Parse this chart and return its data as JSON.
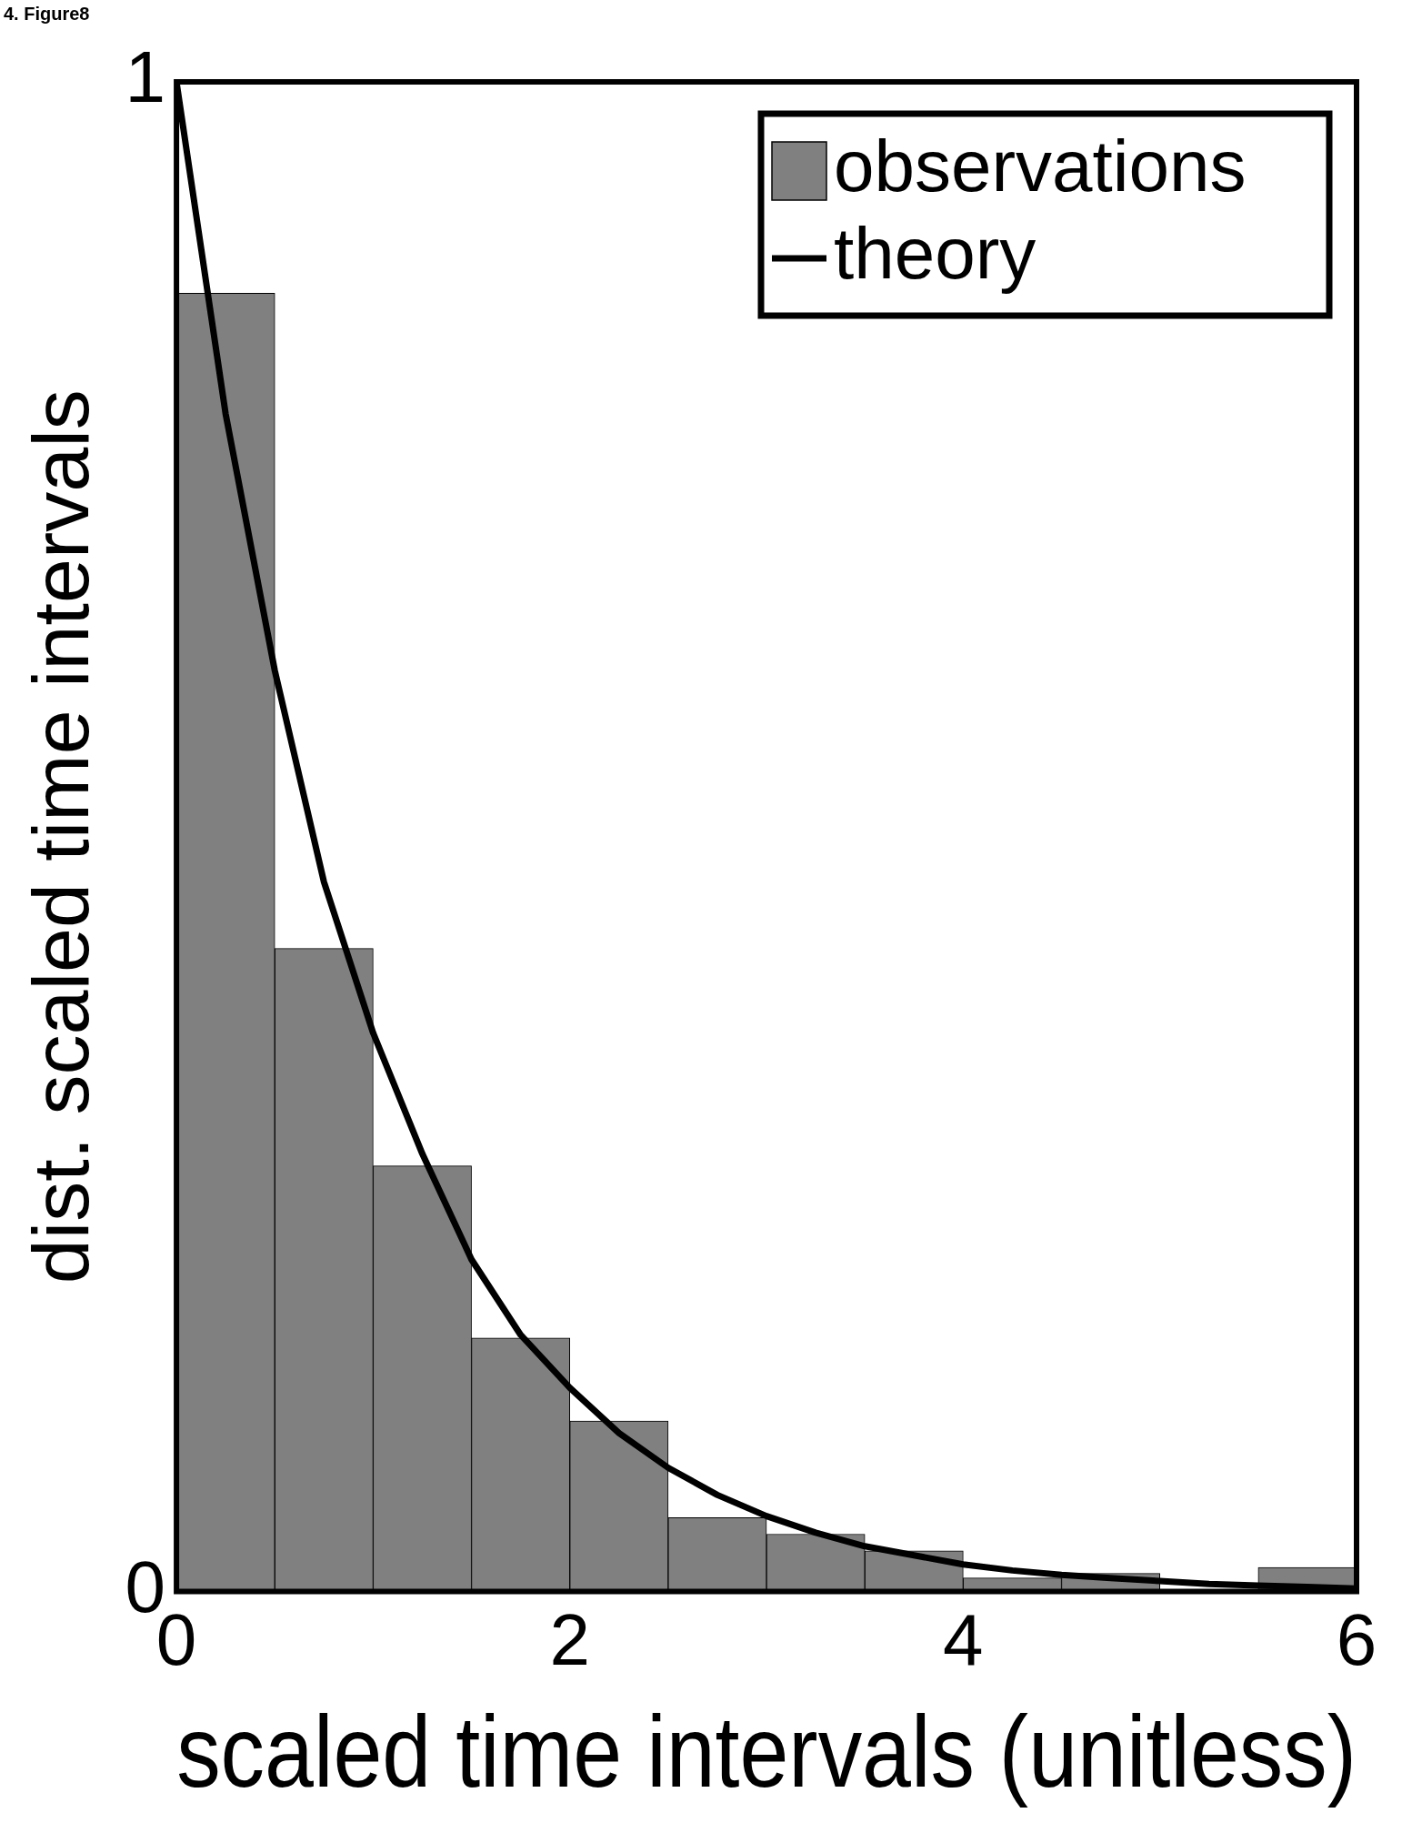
{
  "chart_data": {
    "type": "histogram",
    "xlabel": "scaled time intervals (unitless)",
    "ylabel": "dist. scaled time intervals",
    "annotations": [
      "4. Figure8"
    ],
    "xlim": [
      0,
      6
    ],
    "xticks": [
      0,
      2,
      4,
      6
    ],
    "ylim": [
      0,
      1
    ],
    "yticks": [
      0,
      1
    ],
    "grid": false,
    "legend": "top right",
    "series": [
      {
        "name": "observations",
        "type": "histogram",
        "color": "#808080",
        "bins": [
          0,
          0.5,
          1,
          1.5,
          2,
          2.5,
          3,
          3.5,
          4,
          4.5,
          5,
          5.5,
          6
        ],
        "values": [
          0.86,
          0.426,
          0.282,
          0.168,
          0.113,
          0.049,
          0.038,
          0.027,
          0.009,
          0.012,
          0,
          0.016
        ]
      },
      {
        "name": "theory",
        "type": "line",
        "color": "#000000",
        "x": [
          0,
          0.25,
          0.5,
          0.75,
          1,
          1.25,
          1.5,
          1.75,
          2,
          2.25,
          2.5,
          2.75,
          3,
          3.25,
          3.5,
          3.75,
          4,
          4.25,
          4.5,
          4.75,
          5,
          5.25,
          5.5,
          5.75,
          6
        ],
        "values": [
          1,
          0.78,
          0.61,
          0.47,
          0.37,
          0.29,
          0.22,
          0.17,
          0.135,
          0.105,
          0.082,
          0.064,
          0.05,
          0.039,
          0.03,
          0.024,
          0.018,
          0.014,
          0.011,
          0.009,
          0.007,
          0.005,
          0.004,
          0.003,
          0.002
        ]
      }
    ]
  }
}
